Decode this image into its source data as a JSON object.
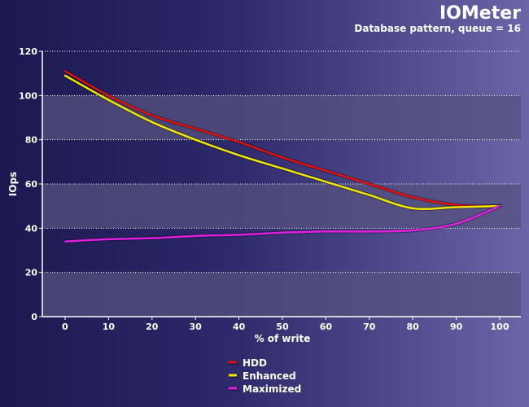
{
  "header": {
    "title": "IOMeter",
    "subtitle": "Database pattern, queue = 16"
  },
  "colors": {
    "band": "#55517f",
    "grid": "#ffffff",
    "axis": "#ffffff"
  },
  "chart_data": {
    "type": "line",
    "xlabel": "% of write",
    "ylabel": "IOps",
    "x": [
      0,
      10,
      20,
      30,
      40,
      50,
      60,
      70,
      80,
      90,
      100
    ],
    "xlim": [
      0,
      100
    ],
    "ylim": [
      0,
      120
    ],
    "xticks": [
      0,
      10,
      20,
      30,
      40,
      50,
      60,
      70,
      80,
      90,
      100
    ],
    "yticks": [
      0,
      20,
      40,
      60,
      80,
      100,
      120
    ],
    "grid": true,
    "legend": "bottom-center",
    "series": [
      {
        "name": "HDD",
        "color": "#e01010",
        "values": [
          111,
          100,
          91,
          85,
          79,
          72,
          66,
          60,
          54,
          50.5,
          50
        ]
      },
      {
        "name": "Enhanced",
        "color": "#f0e800",
        "values": [
          109,
          98,
          88,
          80,
          73,
          67,
          61,
          55,
          49,
          49.5,
          50
        ]
      },
      {
        "name": "Maximized",
        "color": "#e020e0",
        "values": [
          34,
          35,
          35.5,
          36.5,
          37,
          38,
          38.5,
          38.5,
          39,
          42,
          50
        ]
      }
    ]
  }
}
